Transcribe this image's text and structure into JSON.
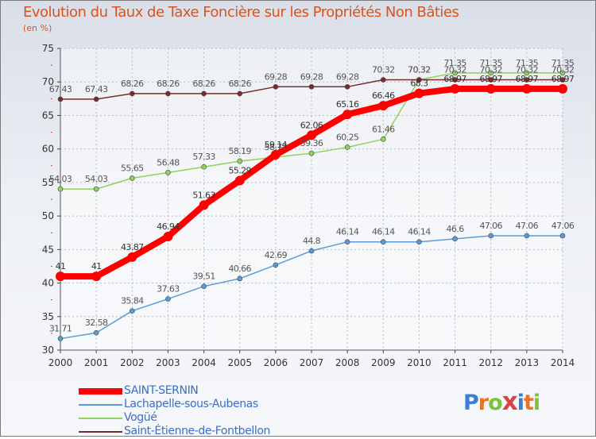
{
  "header": {
    "title": "Evolution du Taux de Taxe Foncière sur les Propriétés Non Bâties",
    "unit_label": "(en %)"
  },
  "logo": {
    "letters": [
      "P",
      "r",
      "o",
      "x",
      "i",
      "t",
      "i"
    ],
    "colors": [
      "#3a7fd5",
      "#e8732a",
      "#7cc23a",
      "#d94545",
      "#3a7fd5",
      "#e8732a",
      "#7cc23a"
    ]
  },
  "chart_data": {
    "type": "line",
    "title": "Evolution du Taux de Taxe Foncière sur les Propriétés Non Bâties",
    "ylabel": "(en %)",
    "xlabel": "",
    "ylim": [
      30,
      75
    ],
    "yticks": [
      30,
      35,
      40,
      45,
      50,
      55,
      60,
      65,
      70,
      75
    ],
    "grid": true,
    "legend_position": "bottom-left",
    "x": [
      2000,
      2001,
      2002,
      2003,
      2004,
      2005,
      2006,
      2007,
      2008,
      2009,
      2010,
      2011,
      2012,
      2013,
      2014
    ],
    "series": [
      {
        "name": "SAINT-SERNIN",
        "color": "#ff0000",
        "values": [
          41,
          41,
          43.87,
          46.94,
          51.63,
          55.29,
          59.14,
          62.06,
          65.16,
          66.46,
          68.3,
          68.97,
          68.97,
          68.97,
          68.97
        ],
        "labels": [
          "41",
          "41",
          "43.87",
          "46.94",
          "51.63",
          "55.29",
          "59.14",
          "62.06",
          "65.16",
          "66.46",
          "68.3",
          "68.97",
          "68.97",
          "68.97",
          "68.97"
        ]
      },
      {
        "name": "Lachapelle-sous-Aubenas",
        "color": "#5b9bd5",
        "values": [
          31.71,
          32.58,
          35.84,
          37.63,
          39.51,
          40.66,
          42.69,
          44.8,
          46.14,
          46.14,
          46.14,
          46.6,
          47.06,
          47.06,
          47.06
        ],
        "labels": [
          "31.71",
          "32.58",
          "35.84",
          "37.63",
          "39.51",
          "40.66",
          "42.69",
          "44.8",
          "46.14",
          "46.14",
          "46.14",
          "46.6",
          "47.06",
          "47.06",
          "47.06"
        ]
      },
      {
        "name": "Vogüé",
        "color": "#8fd45a",
        "values": [
          54.03,
          54.03,
          55.65,
          56.48,
          57.33,
          58.19,
          58.77,
          59.36,
          60.25,
          61.46,
          70.32,
          71.35,
          71.35,
          71.35,
          71.35
        ],
        "labels": [
          "54.03",
          "54.03",
          "55.65",
          "56.48",
          "57.33",
          "58.19",
          "58.77",
          "59.36",
          "60.25",
          "61.46",
          "70.32",
          "71.35",
          "71.35",
          "71.35",
          "71.35"
        ]
      },
      {
        "name": "Saint-Étienne-de-Fontbellon",
        "color": "#7a2b2b",
        "values": [
          67.43,
          67.43,
          68.26,
          68.26,
          68.26,
          68.26,
          69.28,
          69.28,
          69.28,
          70.32,
          70.32,
          70.32,
          70.32,
          70.32,
          70.32
        ],
        "labels": [
          "67.43",
          "67.43",
          "68.26",
          "68.26",
          "68.26",
          "68.26",
          "69.28",
          "69.28",
          "69.28",
          "70.32",
          "70.32",
          "70.32",
          "70.32",
          "70.32",
          "70.32"
        ]
      }
    ]
  }
}
